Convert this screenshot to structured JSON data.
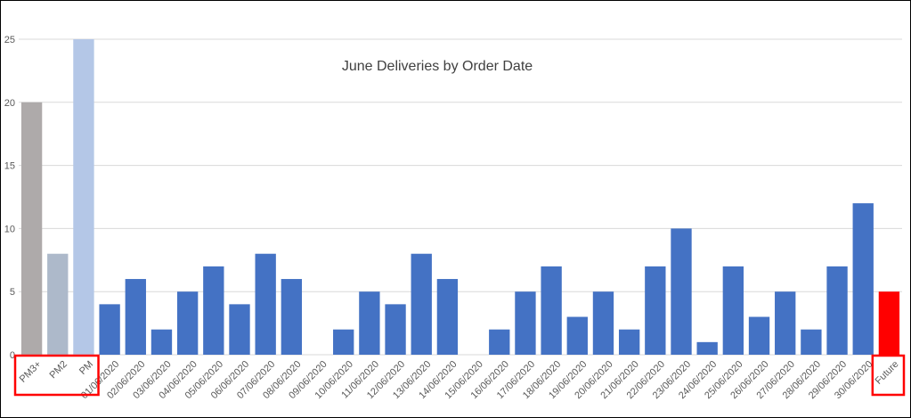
{
  "chart_data": {
    "type": "bar",
    "title": "June Deliveries by Order Date",
    "xlabel": "",
    "ylabel": "",
    "ylim": [
      0,
      25
    ],
    "yticks": [
      0,
      5,
      10,
      15,
      20,
      25
    ],
    "grid": true,
    "legend": "none",
    "categories": [
      "PM3+",
      "PM2",
      "PM",
      "01/06/2020",
      "02/06/2020",
      "03/06/2020",
      "04/06/2020",
      "05/06/2020",
      "06/06/2020",
      "07/06/2020",
      "08/06/2020",
      "09/06/2020",
      "10/06/2020",
      "11/06/2020",
      "12/06/2020",
      "13/06/2020",
      "14/06/2020",
      "15/06/2020",
      "16/06/2020",
      "17/06/2020",
      "18/06/2020",
      "19/06/2020",
      "20/06/2020",
      "21/06/2020",
      "22/06/2020",
      "23/06/2020",
      "24/06/2020",
      "25/06/2020",
      "26/06/2020",
      "27/06/2020",
      "28/06/2020",
      "29/06/2020",
      "30/06/2020",
      "Future"
    ],
    "values": [
      20,
      8,
      25,
      4,
      6,
      2,
      5,
      7,
      4,
      8,
      6,
      0,
      2,
      5,
      4,
      8,
      6,
      0,
      2,
      5,
      7,
      3,
      5,
      2,
      7,
      10,
      1,
      7,
      3,
      5,
      2,
      7,
      12,
      5
    ],
    "bar_colors": [
      "#aeaaaa",
      "#adb9ca",
      "#b4c7e7",
      "#4472c4",
      "#4472c4",
      "#4472c4",
      "#4472c4",
      "#4472c4",
      "#4472c4",
      "#4472c4",
      "#4472c4",
      "#4472c4",
      "#4472c4",
      "#4472c4",
      "#4472c4",
      "#4472c4",
      "#4472c4",
      "#4472c4",
      "#4472c4",
      "#4472c4",
      "#4472c4",
      "#4472c4",
      "#4472c4",
      "#4472c4",
      "#4472c4",
      "#4472c4",
      "#4472c4",
      "#4472c4",
      "#4472c4",
      "#4472c4",
      "#4472c4",
      "#4472c4",
      "#4472c4",
      "#ff0000"
    ],
    "highlight_color": "#ff0000",
    "gridline_color": "#d9d9d9"
  }
}
